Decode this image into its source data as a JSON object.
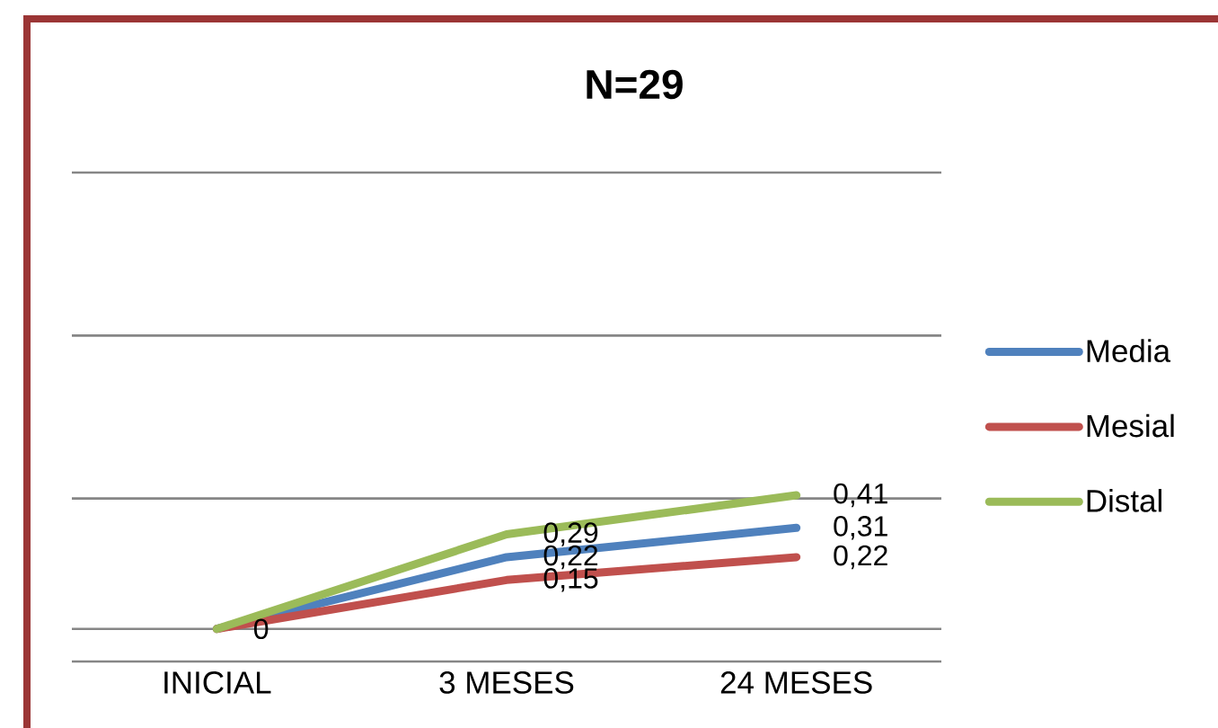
{
  "chart_data": {
    "type": "line",
    "title": "N=29",
    "categories": [
      "INICIAL",
      "3 MESES",
      "24 MESES"
    ],
    "series": [
      {
        "name": "Media",
        "color": "#4f81bd",
        "values": [
          0,
          0.22,
          0.31
        ],
        "value_labels": [
          "0",
          "0,22",
          "0,31"
        ]
      },
      {
        "name": "Mesial",
        "color": "#c0504d",
        "values": [
          0,
          0.15,
          0.22
        ],
        "value_labels": [
          null,
          "0,15",
          "0,22"
        ]
      },
      {
        "name": "Distal",
        "color": "#9bbb59",
        "values": [
          0,
          0.29,
          0.41
        ],
        "value_labels": [
          null,
          "0,29",
          "0,41"
        ]
      }
    ],
    "ylim": [
      -0.1,
      1.4
    ],
    "yticks": [
      {
        "value": 0,
        "label": null
      },
      {
        "value": 0.4,
        "label": null
      },
      {
        "value": 0.9,
        "label": null
      },
      {
        "value": 1.4,
        "label": null
      }
    ],
    "grid": "y",
    "legend": "right",
    "tick_labels": "x",
    "marker": "none",
    "line_style": "solid"
  }
}
